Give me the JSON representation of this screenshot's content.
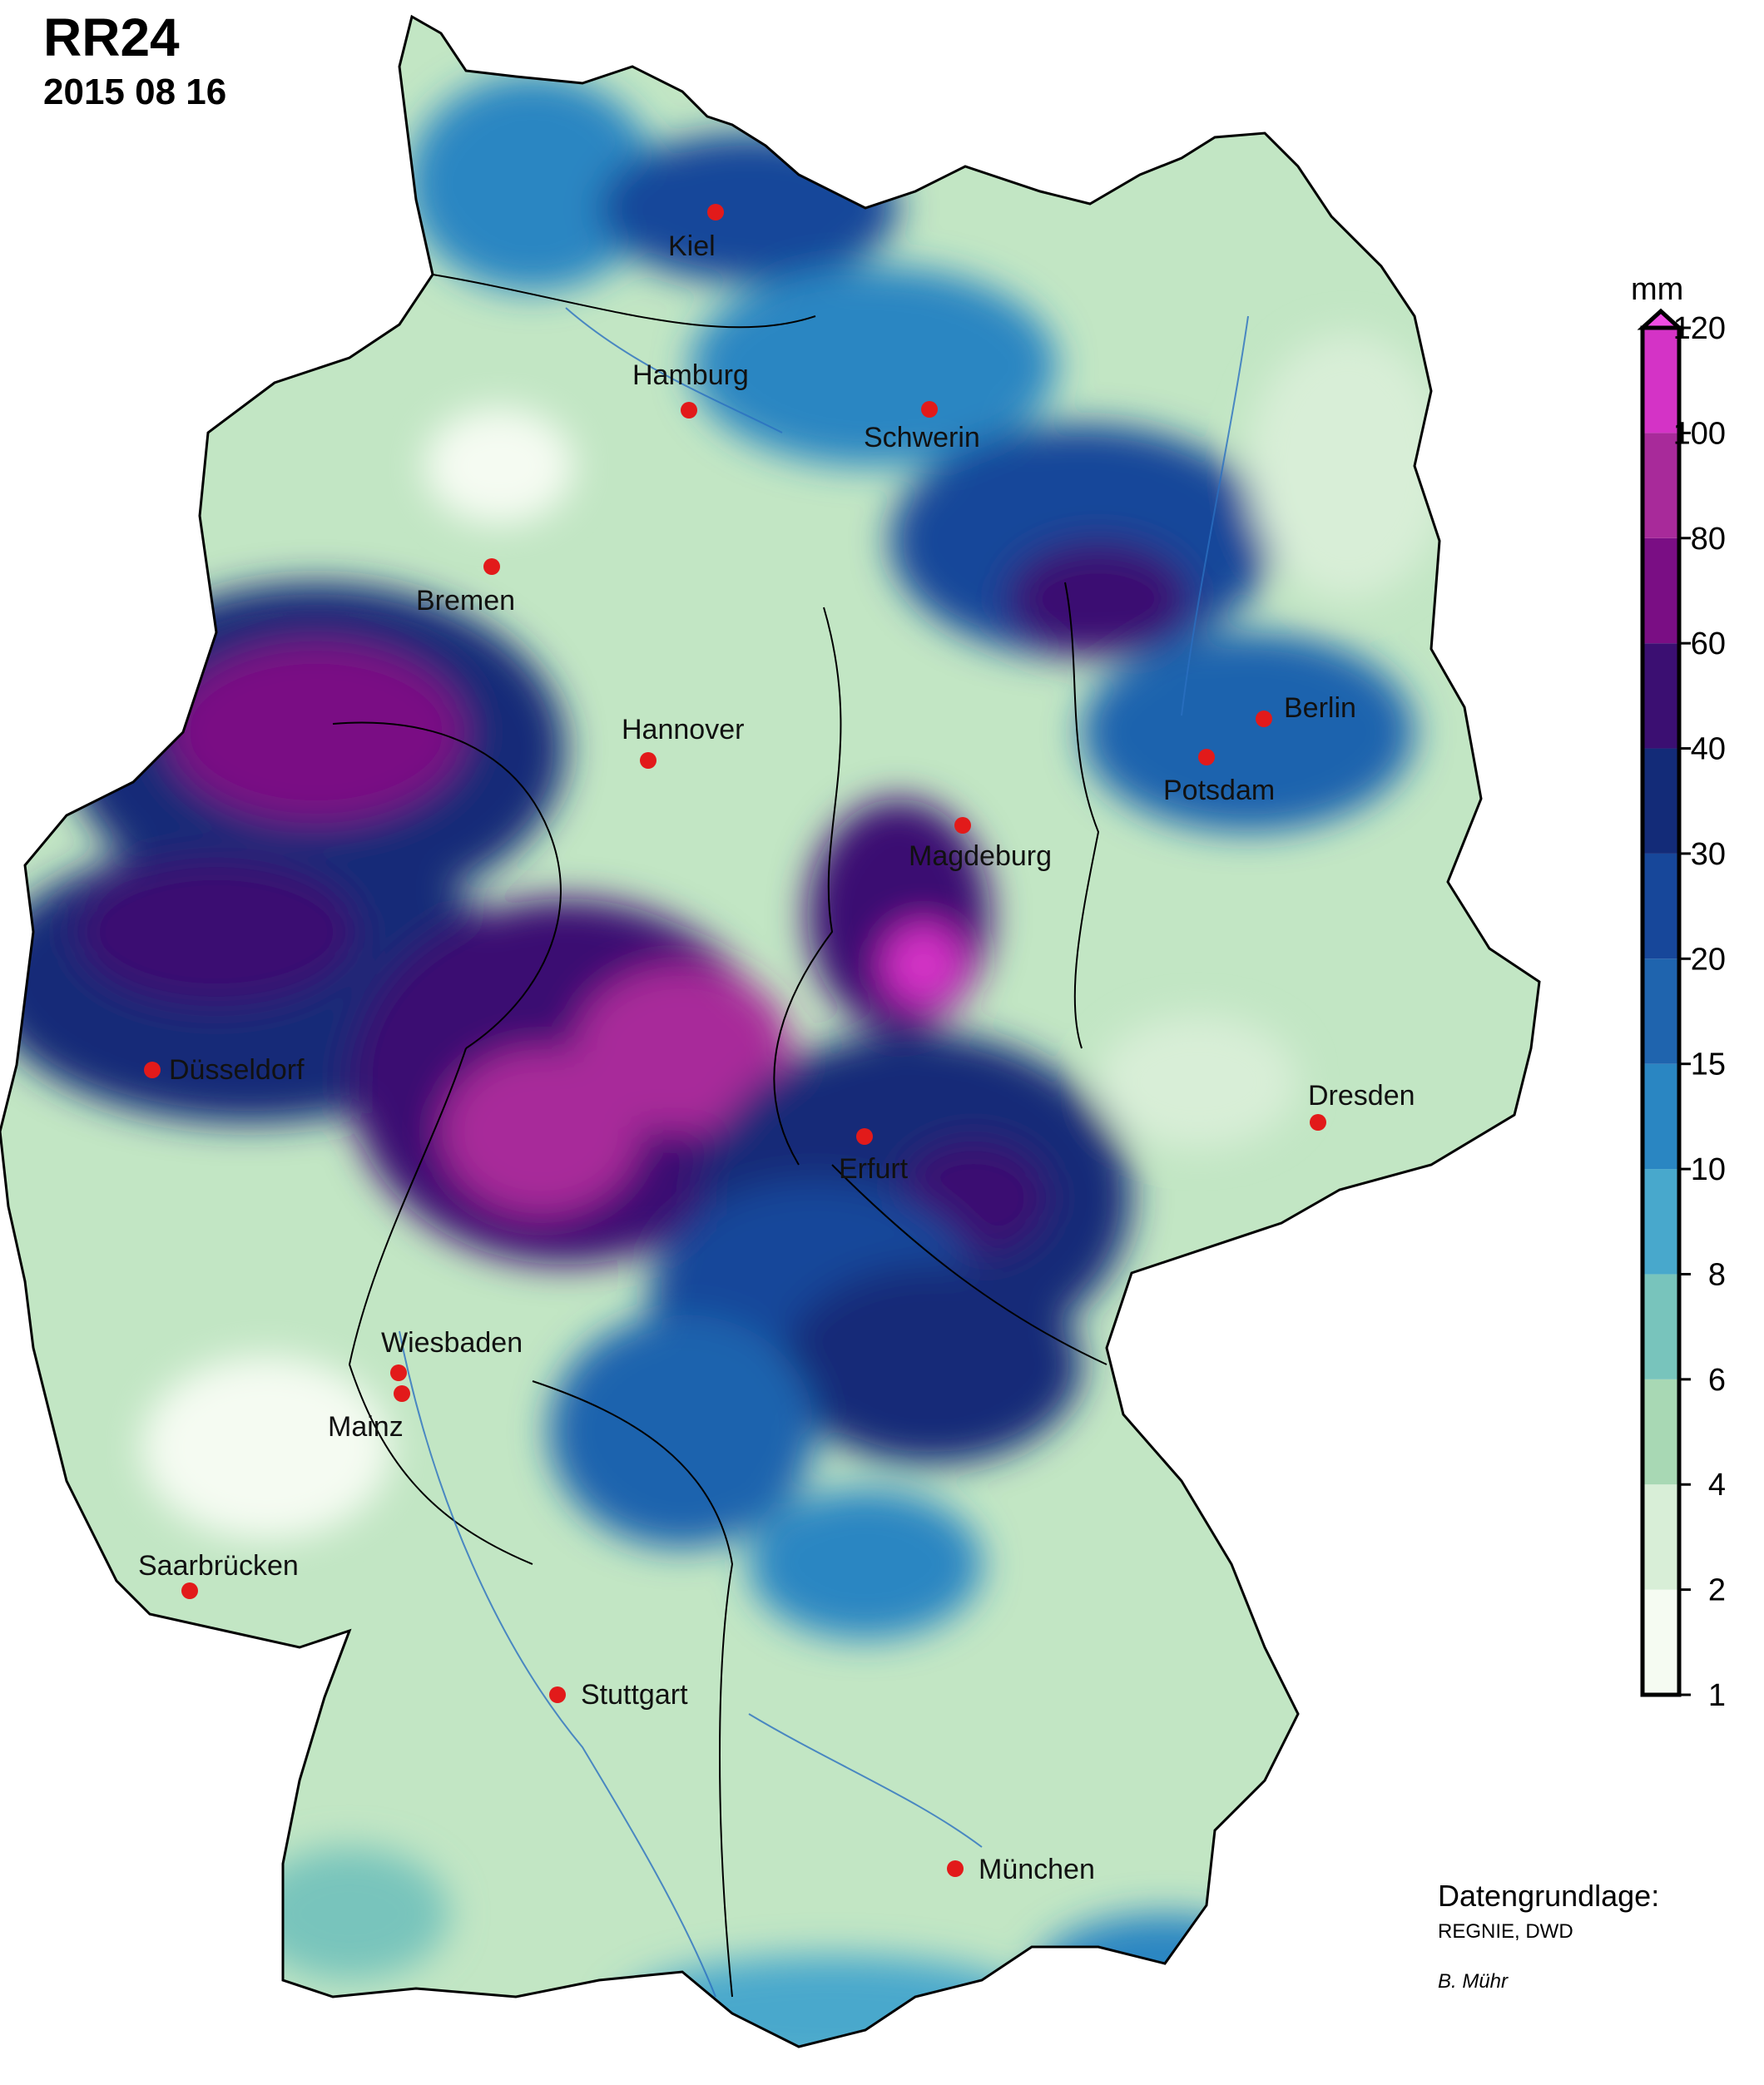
{
  "title": "RR24",
  "date": "2015 08 16",
  "legend": {
    "unit": "mm",
    "ticks": [
      "1",
      "2",
      "4",
      "6",
      "8",
      "10",
      "15",
      "20",
      "30",
      "40",
      "60",
      "80",
      "100",
      "120"
    ],
    "colors": [
      "#f5fbf2",
      "#d8eed7",
      "#a8d8b4",
      "#78c4bc",
      "#48a8cc",
      "#2a86c2",
      "#1f64ae",
      "#17479a",
      "#132b78",
      "#3b0f72",
      "#7a0e84",
      "#a82a9a",
      "#d433c6",
      "#f04ce4"
    ]
  },
  "cities": [
    {
      "name": "Kiel"
    },
    {
      "name": "Hamburg"
    },
    {
      "name": "Schwerin"
    },
    {
      "name": "Bremen"
    },
    {
      "name": "Hannover"
    },
    {
      "name": "Berlin"
    },
    {
      "name": "Potsdam"
    },
    {
      "name": "Magdeburg"
    },
    {
      "name": "Düsseldorf"
    },
    {
      "name": "Erfurt"
    },
    {
      "name": "Dresden"
    },
    {
      "name": "Wiesbaden"
    },
    {
      "name": "Mainz"
    },
    {
      "name": "Saarbrücken"
    },
    {
      "name": "Stuttgart"
    },
    {
      "name": "München"
    }
  ],
  "credits": {
    "heading": "Datengrundlage:",
    "source": "REGNIE, DWD",
    "author": "B. Mühr"
  }
}
